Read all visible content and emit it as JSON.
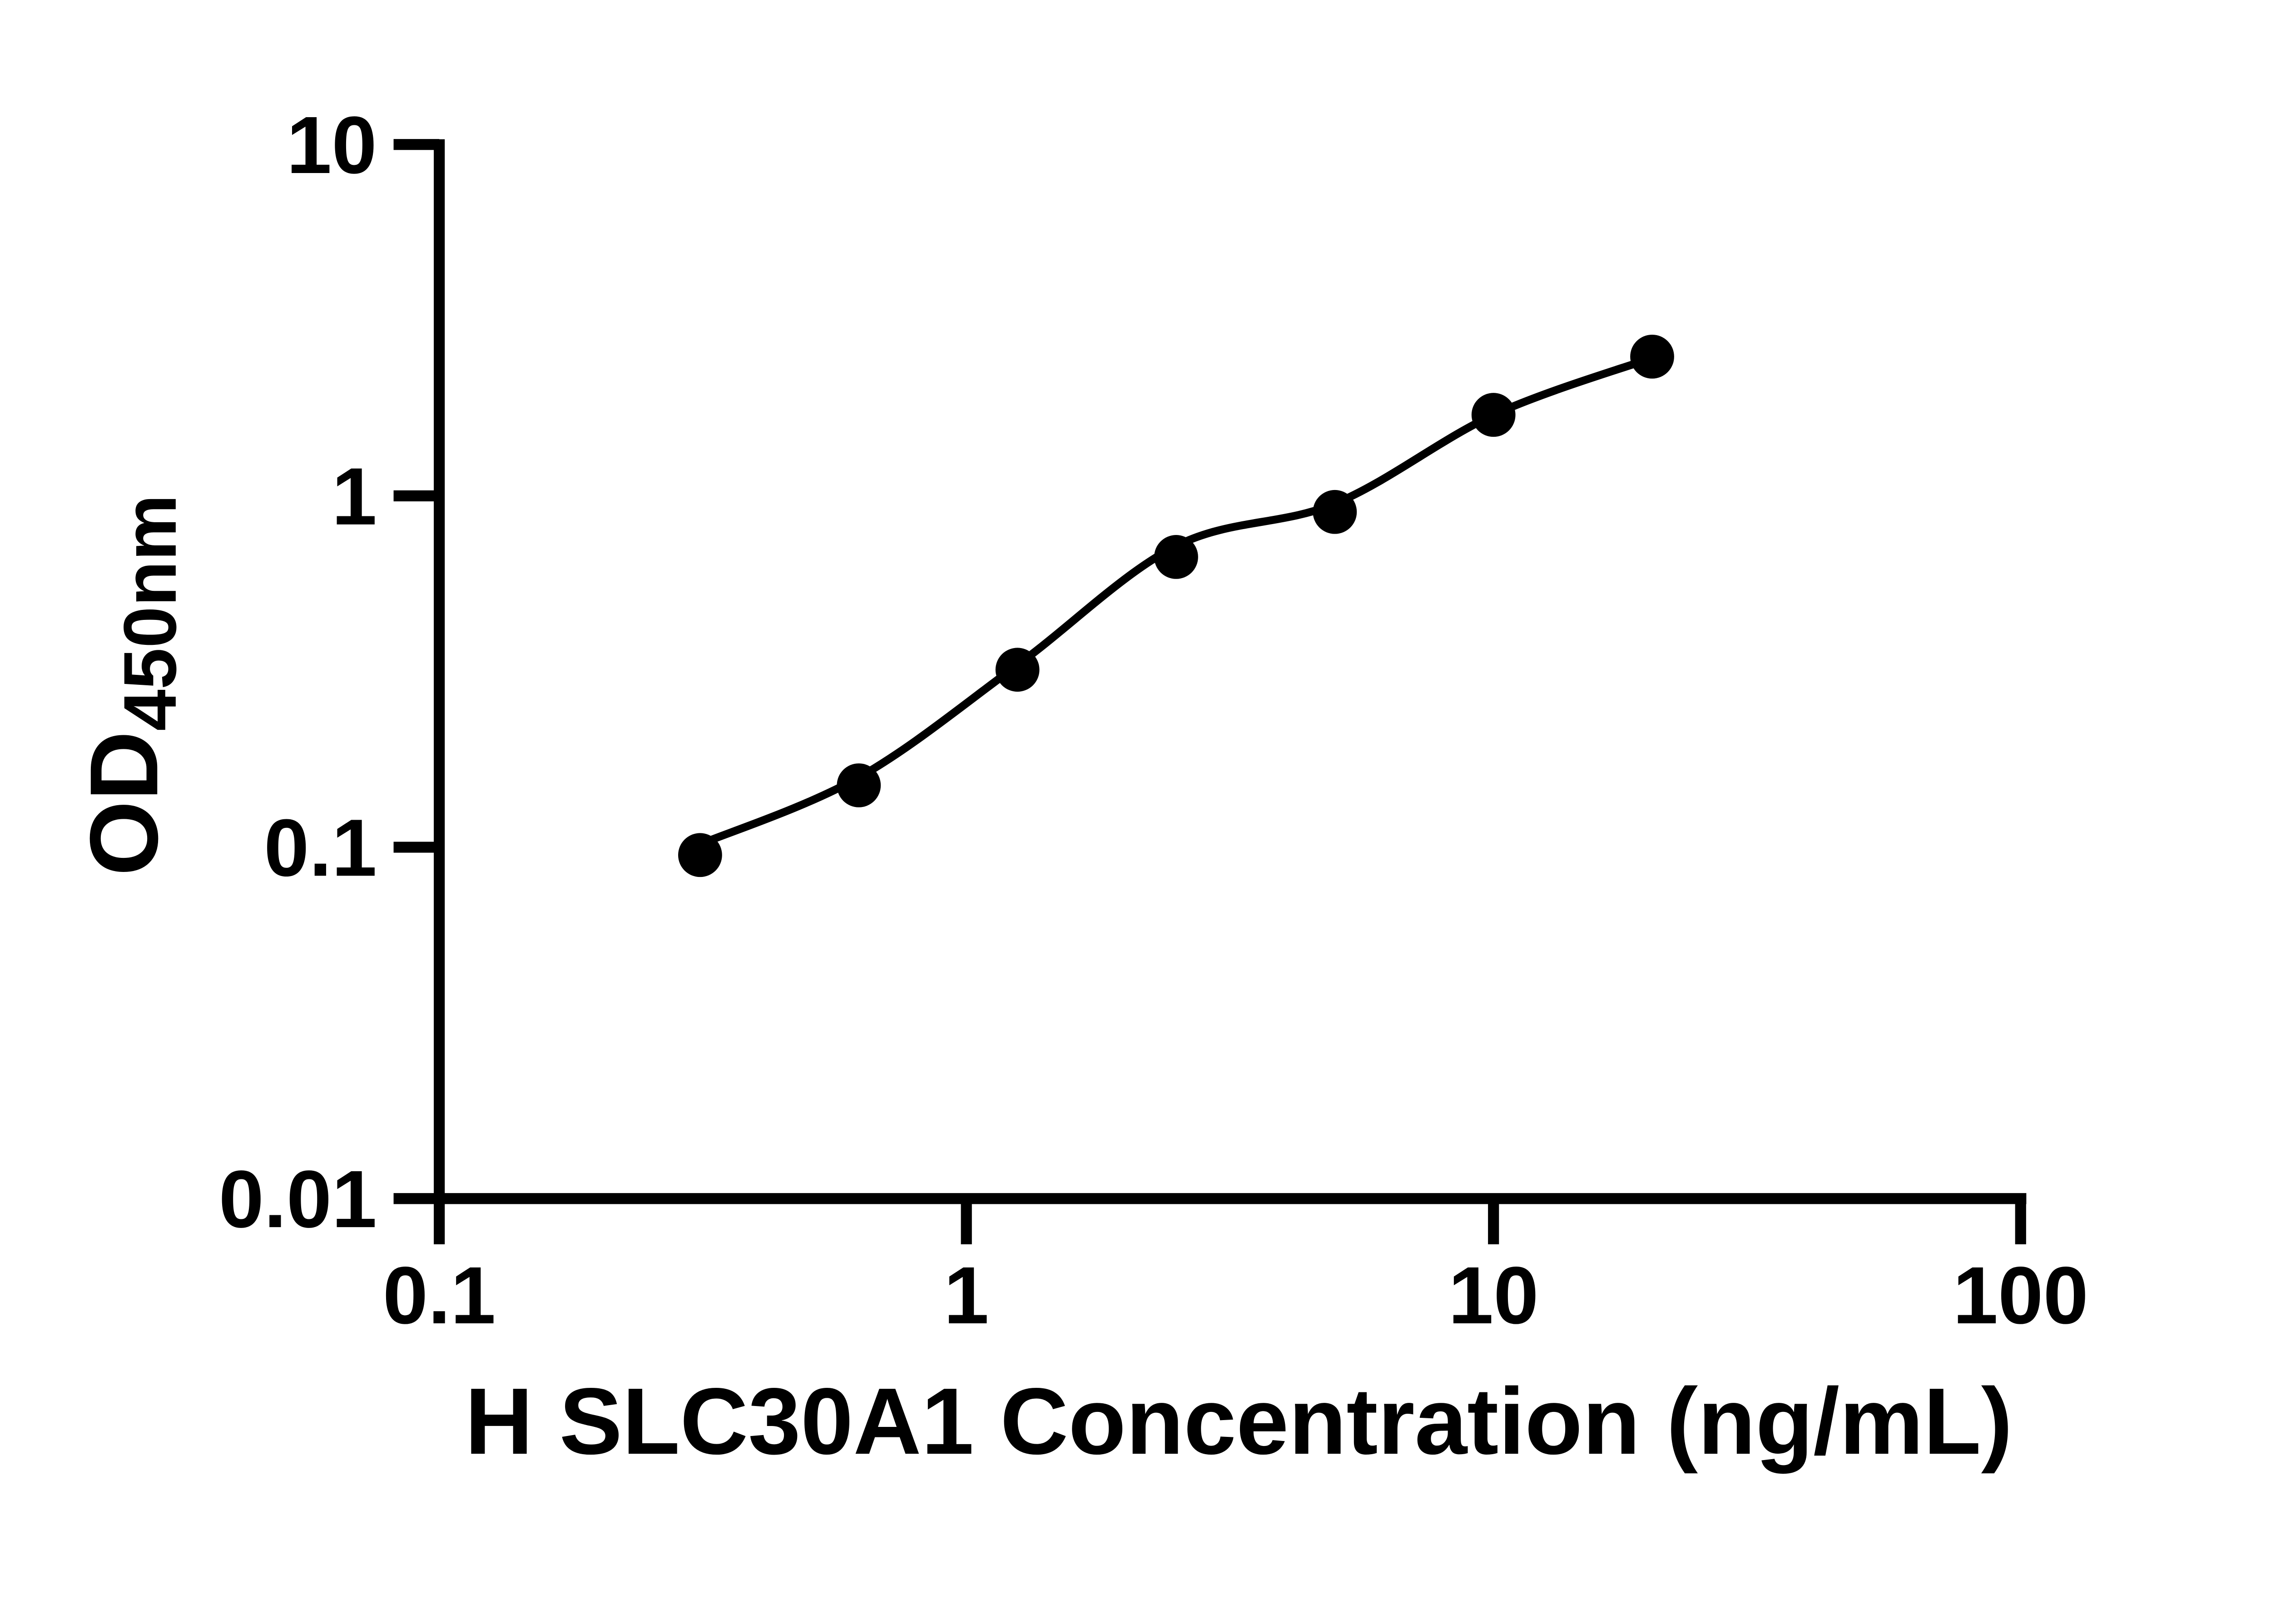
{
  "chart_data": {
    "type": "scatter",
    "title": "",
    "xlabel": "H SLC30A1 Concentration (ng/mL)",
    "ylabel_main": "OD",
    "ylabel_sub": "450nm",
    "x_scale": "log",
    "y_scale": "log",
    "xlim": [
      0.1,
      100
    ],
    "ylim": [
      0.01,
      10
    ],
    "grid": false,
    "legend": "none",
    "x_ticks": [
      {
        "value": 0.1,
        "label": "0.1"
      },
      {
        "value": 1,
        "label": "1"
      },
      {
        "value": 10,
        "label": "10"
      },
      {
        "value": 100,
        "label": "100"
      }
    ],
    "y_ticks": [
      {
        "value": 10,
        "label": "10"
      },
      {
        "value": 1,
        "label": "1"
      },
      {
        "value": 0.1,
        "label": "0.1"
      },
      {
        "value": 0.01,
        "label": "0.01"
      }
    ],
    "series": [
      {
        "name": "standard-curve-points",
        "marker": "filled-circle",
        "color": "#000000",
        "points": [
          {
            "x": 0.3125,
            "y": 0.095
          },
          {
            "x": 0.625,
            "y": 0.15
          },
          {
            "x": 1.25,
            "y": 0.32
          },
          {
            "x": 2.5,
            "y": 0.67
          },
          {
            "x": 5,
            "y": 0.9
          },
          {
            "x": 10,
            "y": 1.7
          },
          {
            "x": 20,
            "y": 2.49
          }
        ]
      }
    ],
    "fit_curve": {
      "name": "4pl-fit-line",
      "color": "#000000",
      "points": [
        {
          "x": 0.3125,
          "y": 0.102
        },
        {
          "x": 0.625,
          "y": 0.158
        },
        {
          "x": 1.25,
          "y": 0.33
        },
        {
          "x": 2.5,
          "y": 0.72
        },
        {
          "x": 5,
          "y": 0.95
        },
        {
          "x": 10,
          "y": 1.7
        },
        {
          "x": 20,
          "y": 2.47
        }
      ]
    },
    "colors": {
      "axis": "#000000",
      "marker": "#000000",
      "background": "#ffffff"
    }
  }
}
